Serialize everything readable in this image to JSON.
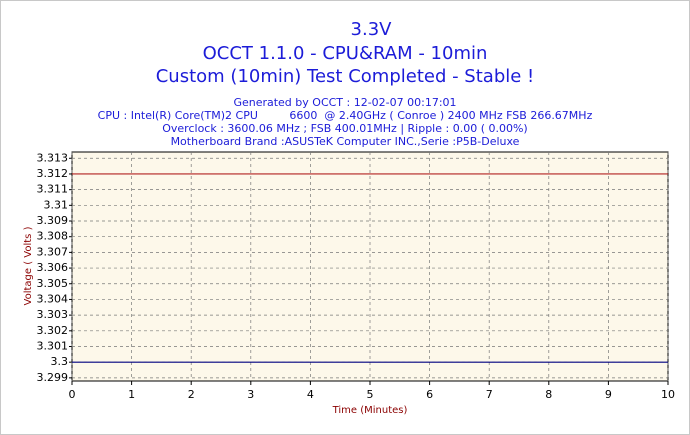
{
  "chart_data": {
    "type": "line",
    "title": [
      "3.3V",
      "OCCT 1.1.0 - CPU&RAM - 10min",
      "Custom (10min) Test Completed - Stable !"
    ],
    "subtitle": [
      "Generated by OCCT : 12-02-07 00:17:01",
      "CPU : Intel(R) Core(TM)2 CPU         6600  @ 2.40GHz ( Conroe ) 2400 MHz FSB 266.67MHz",
      "Overclock : 3600.06 MHz ; FSB 400.01MHz | Ripple : 0.00 ( 0.00%)",
      "Motherboard Brand :ASUSTeK Computer INC.,Serie :P5B-Deluxe"
    ],
    "x_label": "Time (Minutes)",
    "y_label": "Voltage ( Volts )",
    "x": [
      0,
      10
    ],
    "series": [
      {
        "color": "#b22222",
        "values": [
          3.312,
          3.312
        ]
      },
      {
        "color": "#000080",
        "values": [
          3.3,
          3.3
        ]
      }
    ],
    "xlim": [
      0,
      10
    ],
    "xticks": [
      0,
      1,
      2,
      3,
      4,
      5,
      6,
      7,
      8,
      9,
      10
    ],
    "ylim": [
      3.2988,
      3.3134
    ],
    "yticks": [
      3.299,
      3.3,
      3.301,
      3.302,
      3.303,
      3.304,
      3.305,
      3.306,
      3.307,
      3.308,
      3.309,
      3.31,
      3.311,
      3.312,
      3.313
    ],
    "grid": true
  }
}
